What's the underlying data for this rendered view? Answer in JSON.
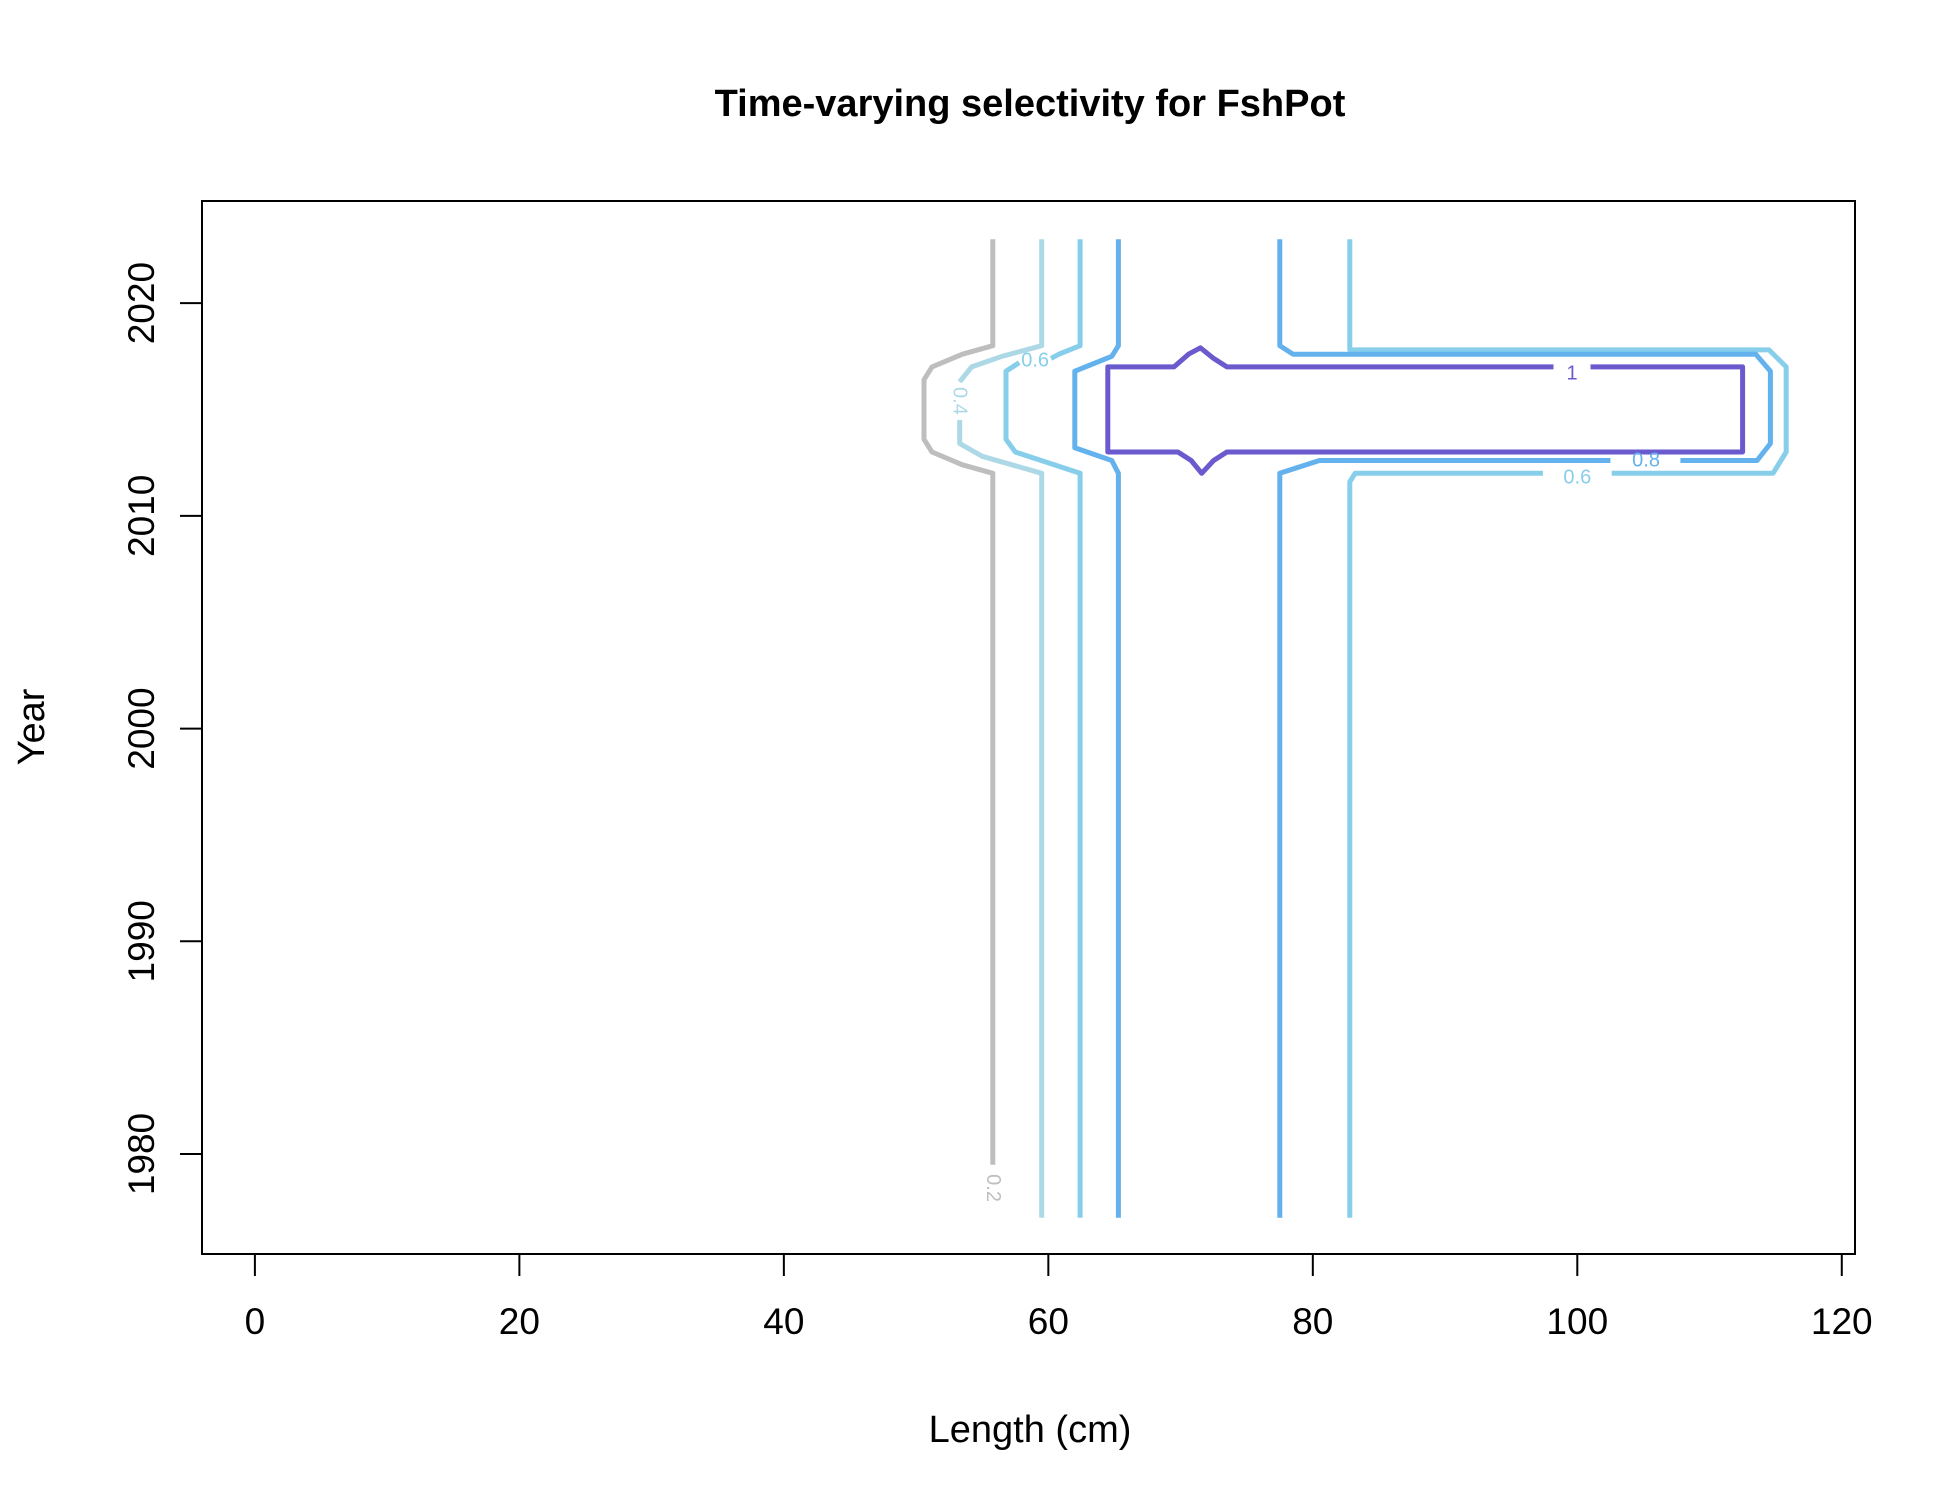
{
  "chart_data": {
    "type": "contour",
    "title": "Time-varying selectivity for FshPot",
    "xlabel": "Length (cm)",
    "ylabel": "Year",
    "xlim": [
      -4,
      121
    ],
    "ylim": [
      1975.3,
      2024.8
    ],
    "xticks": [
      0,
      20,
      40,
      60,
      80,
      100,
      120
    ],
    "yticks": [
      1980,
      1990,
      2000,
      2010,
      2020
    ],
    "grid": false,
    "contours": [
      {
        "level": "0.2",
        "color": "#bebebe",
        "paths": [
          [
            [
              55.8,
              2023.0
            ],
            [
              55.8,
              2018.0
            ],
            [
              53.5,
              2017.6
            ],
            [
              51.2,
              2017.0
            ],
            [
              50.6,
              2016.4
            ],
            [
              50.6,
              2013.6
            ],
            [
              51.2,
              2013.0
            ],
            [
              53.5,
              2012.4
            ],
            [
              55.8,
              2012.0
            ],
            [
              55.8,
              1979.5
            ]
          ]
        ],
        "labels": [
          {
            "x": 55.8,
            "y": 1978.4,
            "text": "0.2",
            "angle": 90
          }
        ]
      },
      {
        "level": "0.4",
        "color": "#add8e6",
        "paths": [
          [
            [
              59.5,
              2023.0
            ],
            [
              59.5,
              2018.0
            ],
            [
              56.5,
              2017.5
            ],
            [
              54.2,
              2017.0
            ],
            [
              53.3,
              2016.3
            ]
          ],
          [
            [
              53.3,
              2014.5
            ],
            [
              53.3,
              2013.4
            ],
            [
              55.0,
              2012.8
            ],
            [
              59.5,
              2012.0
            ],
            [
              59.5,
              1977.0
            ]
          ]
        ],
        "labels": [
          {
            "x": 53.3,
            "y": 2015.4,
            "text": "0.4",
            "angle": 90
          }
        ]
      },
      {
        "level": "0.6",
        "color": "#87ceeb",
        "paths": [
          [
            [
              62.4,
              2023.0
            ],
            [
              62.4,
              2018.0
            ],
            [
              60.8,
              2017.6
            ],
            [
              60.2,
              2017.4
            ]
          ],
          [
            [
              57.8,
              2017.2
            ],
            [
              56.8,
              2016.8
            ],
            [
              56.8,
              2013.6
            ],
            [
              57.5,
              2013.0
            ],
            [
              62.4,
              2012.0
            ],
            [
              62.4,
              1977.0
            ]
          ],
          [
            [
              82.8,
              2023.0
            ],
            [
              82.8,
              2017.8
            ],
            [
              114.5,
              2017.8
            ],
            [
              115.8,
              2017.0
            ],
            [
              115.8,
              2013.0
            ],
            [
              114.8,
              2012.0
            ],
            [
              102.6,
              2012.0
            ]
          ],
          [
            [
              97.4,
              2012.0
            ],
            [
              83.2,
              2012.0
            ],
            [
              82.8,
              2011.6
            ],
            [
              82.8,
              1977.0
            ]
          ]
        ],
        "labels": [
          {
            "x": 59.0,
            "y": 2017.3,
            "text": "0.6",
            "angle": 0
          },
          {
            "x": 100.0,
            "y": 2011.8,
            "text": "0.6",
            "angle": 0
          }
        ]
      },
      {
        "level": "0.8",
        "color": "#63b1ed",
        "paths": [
          [
            [
              65.3,
              2023.0
            ],
            [
              65.3,
              2018.0
            ],
            [
              64.8,
              2017.5
            ],
            [
              62.0,
              2016.8
            ],
            [
              62.0,
              2013.2
            ],
            [
              64.8,
              2012.6
            ],
            [
              65.3,
              2012.0
            ],
            [
              65.3,
              1977.0
            ]
          ],
          [
            [
              77.5,
              2023.0
            ],
            [
              77.5,
              2018.0
            ],
            [
              78.5,
              2017.6
            ],
            [
              113.5,
              2017.6
            ],
            [
              114.6,
              2016.8
            ],
            [
              114.6,
              2013.4
            ],
            [
              113.6,
              2012.6
            ],
            [
              107.8,
              2012.6
            ]
          ],
          [
            [
              102.5,
              2012.6
            ],
            [
              80.5,
              2012.6
            ],
            [
              77.5,
              2012.0
            ],
            [
              77.5,
              1977.0
            ]
          ]
        ],
        "labels": [
          {
            "x": 105.2,
            "y": 2012.6,
            "text": "0.8",
            "angle": 0
          }
        ]
      },
      {
        "level": "1",
        "color": "#6a5acd",
        "paths": [
          [
            [
              101.0,
              2017.0
            ],
            [
              112.5,
              2017.0
            ],
            [
              112.5,
              2013.0
            ],
            [
              73.5,
              2013.0
            ],
            [
              72.5,
              2012.6
            ],
            [
              71.6,
              2012.0
            ],
            [
              70.8,
              2012.6
            ],
            [
              69.8,
              2013.0
            ],
            [
              64.5,
              2013.0
            ],
            [
              64.5,
              2017.0
            ],
            [
              69.5,
              2017.0
            ],
            [
              70.6,
              2017.6
            ],
            [
              71.5,
              2017.9
            ],
            [
              72.5,
              2017.4
            ],
            [
              73.5,
              2017.0
            ],
            [
              98.2,
              2017.0
            ]
          ]
        ],
        "labels": [
          {
            "x": 99.6,
            "y": 2016.7,
            "text": "1",
            "angle": 0
          }
        ]
      }
    ]
  }
}
